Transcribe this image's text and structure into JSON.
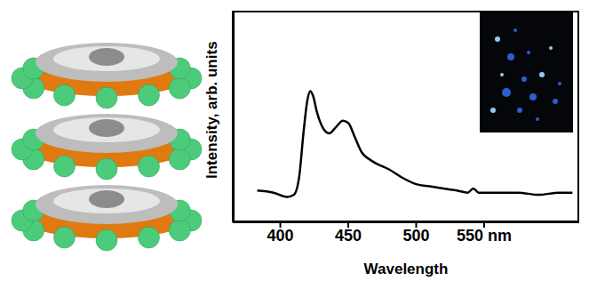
{
  "chart_data": {
    "type": "line",
    "x_label": "Wavelength",
    "y_label": "Intensity, arb. units",
    "x": [
      383,
      395,
      405,
      410,
      414,
      417,
      420,
      422,
      424,
      427,
      431,
      436,
      441,
      446,
      450,
      455,
      460,
      465,
      470,
      480,
      490,
      500,
      510,
      520,
      530,
      538,
      542,
      546,
      560,
      575,
      590,
      605,
      615
    ],
    "values": [
      15,
      14,
      12,
      13,
      22,
      42,
      58,
      62,
      60,
      52,
      45,
      42,
      45,
      48,
      47,
      40,
      33,
      30,
      28,
      25,
      21,
      18,
      17,
      16,
      15,
      14,
      16,
      14,
      14,
      14,
      13,
      14,
      14
    ],
    "color": "#000000",
    "xlim": [
      365,
      620
    ],
    "xticks": [
      400,
      450,
      500,
      {
        "value": 550,
        "label": "550 nm"
      }
    ],
    "ylim": [
      0,
      100
    ],
    "tick_labels": "x",
    "grid": false
  }
}
